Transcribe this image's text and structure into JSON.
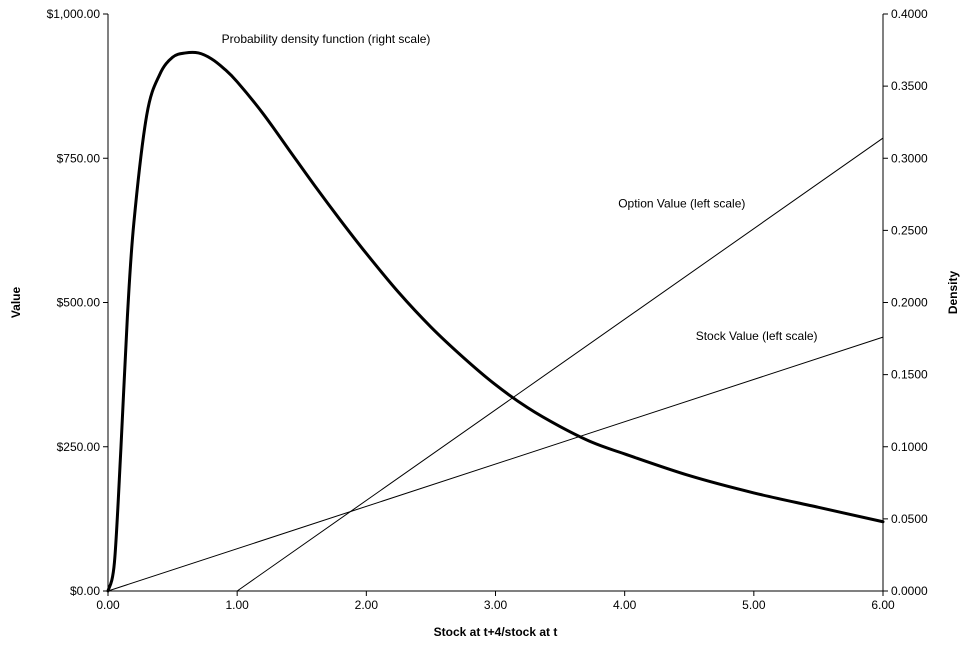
{
  "chart_data": {
    "type": "line",
    "title": "",
    "xlabel": "Stock at t+4/stock at t",
    "ylabel_left": "Value",
    "ylabel_right": "Density",
    "xlim": [
      0,
      6
    ],
    "ylim_left": [
      0,
      1000
    ],
    "ylim_right": [
      0,
      0.4
    ],
    "grid": false,
    "legend": "none",
    "x_ticks": [
      {
        "value": 0,
        "label": "0.00"
      },
      {
        "value": 1,
        "label": "1.00"
      },
      {
        "value": 2,
        "label": "2.00"
      },
      {
        "value": 3,
        "label": "3.00"
      },
      {
        "value": 4,
        "label": "4.00"
      },
      {
        "value": 5,
        "label": "5.00"
      },
      {
        "value": 6,
        "label": "6.00"
      }
    ],
    "y_left_ticks": [
      {
        "value": 0,
        "label": "$0.00"
      },
      {
        "value": 250,
        "label": "$250.00"
      },
      {
        "value": 500,
        "label": "$500.00"
      },
      {
        "value": 750,
        "label": "$750.00"
      },
      {
        "value": 1000,
        "label": "$1,000.00"
      }
    ],
    "y_right_ticks": [
      {
        "value": 0,
        "label": "0.0000"
      },
      {
        "value": 0.05,
        "label": "0.0500"
      },
      {
        "value": 0.1,
        "label": "0.1000"
      },
      {
        "value": 0.15,
        "label": "0.1500"
      },
      {
        "value": 0.2,
        "label": "0.2000"
      },
      {
        "value": 0.25,
        "label": "0.2500"
      },
      {
        "value": 0.3,
        "label": "0.3000"
      },
      {
        "value": 0.35,
        "label": "0.3500"
      },
      {
        "value": 0.4,
        "label": "0.4000"
      }
    ],
    "series": [
      {
        "name": "Probability density function (right scale)",
        "axis": "right",
        "x": [
          0,
          0.05,
          0.1,
          0.15,
          0.2,
          0.3,
          0.4,
          0.5,
          0.6,
          0.7,
          0.8,
          0.9,
          1.0,
          1.2,
          1.4,
          1.6,
          1.8,
          2.0,
          2.25,
          2.5,
          2.75,
          3.0,
          3.25,
          3.5,
          3.75,
          4.0,
          4.5,
          5.0,
          5.5,
          6.0
        ],
        "values": [
          0,
          0.02,
          0.099,
          0.19,
          0.255,
          0.33,
          0.358,
          0.37,
          0.373,
          0.373,
          0.369,
          0.362,
          0.353,
          0.331,
          0.306,
          0.281,
          0.257,
          0.234,
          0.207,
          0.183,
          0.162,
          0.143,
          0.127,
          0.114,
          0.103,
          0.095,
          0.08,
          0.068,
          0.058,
          0.048
        ],
        "label_text": "Probability density function (right scale)",
        "stroke": "#000000",
        "width": 3
      },
      {
        "name": "Option Value (left scale)",
        "axis": "left",
        "x": [
          1,
          6
        ],
        "values": [
          0,
          785
        ],
        "label_text": "Option Value (left scale)",
        "stroke": "#000000",
        "width": 1
      },
      {
        "name": "Stock Value (left scale)",
        "axis": "left",
        "x": [
          0,
          6
        ],
        "values": [
          0,
          440
        ],
        "label_text": "Stock Value (left scale)",
        "stroke": "#000000",
        "width": 1
      }
    ],
    "annotations_at": [
      {
        "series": 0,
        "x": 0.88,
        "y": 0.38,
        "axis": "right"
      },
      {
        "series": 1,
        "x": 3.95,
        "y": 665,
        "axis": "left"
      },
      {
        "series": 2,
        "x": 4.55,
        "y": 435,
        "axis": "left"
      }
    ]
  }
}
